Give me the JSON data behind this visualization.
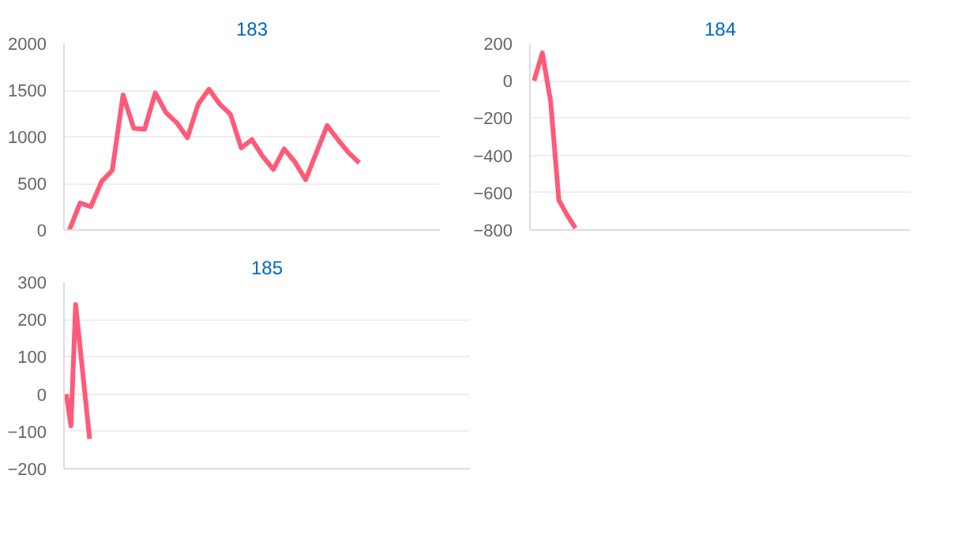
{
  "chart_data": [
    {
      "type": "line",
      "title": "183",
      "categories": [
        null,
        null,
        null,
        null,
        null,
        null,
        null,
        null,
        null,
        null,
        null,
        null,
        null,
        null,
        null,
        null,
        null,
        null,
        null,
        null,
        null,
        null,
        null,
        null,
        null,
        null,
        null,
        null,
        null,
        null,
        null,
        null,
        null,
        null,
        null
      ],
      "series": [
        {
          "color": "#ff5a78",
          "values": [
            0,
            290,
            250,
            520,
            640,
            1450,
            1090,
            1080,
            1470,
            1260,
            1150,
            990,
            1350,
            1510,
            1350,
            1240,
            880,
            970,
            790,
            650,
            870,
            730,
            540,
            830,
            1120,
            970,
            830,
            720,
            null,
            null,
            null,
            null,
            null,
            null,
            null
          ]
        }
      ],
      "ylim": [
        0,
        2000
      ],
      "yticks": [
        0,
        500,
        1000,
        1500,
        2000
      ],
      "grid": "y",
      "tick_labels": "y"
    },
    {
      "type": "line",
      "title": "184",
      "categories": [
        null,
        null,
        null,
        null,
        null,
        null,
        null,
        null,
        null,
        null,
        null,
        null,
        null,
        null,
        null,
        null,
        null,
        null,
        null,
        null,
        null,
        null,
        null,
        null,
        null,
        null,
        null,
        null,
        null,
        null,
        null,
        null,
        null,
        null,
        null,
        null,
        null,
        null,
        null,
        null,
        null,
        null,
        null,
        null,
        null,
        null
      ],
      "series": [
        {
          "color": "#ff5a78",
          "values": [
            0,
            150,
            -110,
            -640,
            -720,
            -790,
            null,
            null,
            null,
            null,
            null,
            null,
            null,
            null,
            null,
            null,
            null,
            null,
            null,
            null,
            null,
            null,
            null,
            null,
            null,
            null,
            null,
            null,
            null,
            null,
            null,
            null,
            null,
            null,
            null,
            null,
            null,
            null,
            null,
            null,
            null,
            null,
            null,
            null,
            null,
            null
          ]
        }
      ],
      "ylim": [
        -800,
        200
      ],
      "yticks": [
        -800,
        -600,
        -400,
        -200,
        0,
        200
      ],
      "grid": "y",
      "tick_labels": "y"
    },
    {
      "type": "line",
      "title": "185",
      "categories": [
        null,
        null,
        null,
        null,
        null,
        null,
        null,
        null,
        null,
        null,
        null,
        null,
        null,
        null,
        null,
        null,
        null,
        null,
        null,
        null,
        null,
        null,
        null,
        null,
        null,
        null,
        null,
        null,
        null,
        null,
        null,
        null,
        null,
        null,
        null,
        null,
        null,
        null,
        null,
        null,
        null,
        null,
        null,
        null,
        null,
        null,
        null,
        null,
        null,
        null,
        null,
        null,
        null,
        null,
        null,
        null,
        null,
        null,
        null,
        null,
        null,
        null,
        null,
        null,
        null,
        null,
        null,
        null,
        null,
        null,
        null,
        null,
        null,
        null,
        null,
        null,
        null,
        null,
        null,
        null,
        null,
        null,
        null,
        null,
        null,
        null,
        null
      ],
      "series": [
        {
          "color": "#ff5a78",
          "values": [
            0,
            -85,
            240,
            120,
            0,
            -120,
            null,
            null,
            null,
            null,
            null,
            null,
            null,
            null,
            null,
            null,
            null,
            null,
            null,
            null,
            null,
            null,
            null,
            null,
            null,
            null,
            null,
            null,
            null,
            null,
            null,
            null,
            null,
            null,
            null,
            null,
            null,
            null,
            null,
            null,
            null,
            null,
            null,
            null,
            null,
            null,
            null,
            null,
            null,
            null,
            null,
            null,
            null,
            null,
            null,
            null,
            null,
            null,
            null,
            null,
            null,
            null,
            null,
            null,
            null,
            null,
            null,
            null,
            null,
            null,
            null,
            null,
            null,
            null,
            null,
            null,
            null,
            null,
            null,
            null,
            null,
            null,
            null,
            null,
            null,
            null,
            null
          ]
        }
      ],
      "ylim": [
        -200,
        300
      ],
      "yticks": [
        -200,
        -100,
        0,
        100,
        200,
        300
      ],
      "grid": "y",
      "tick_labels": "y"
    }
  ]
}
